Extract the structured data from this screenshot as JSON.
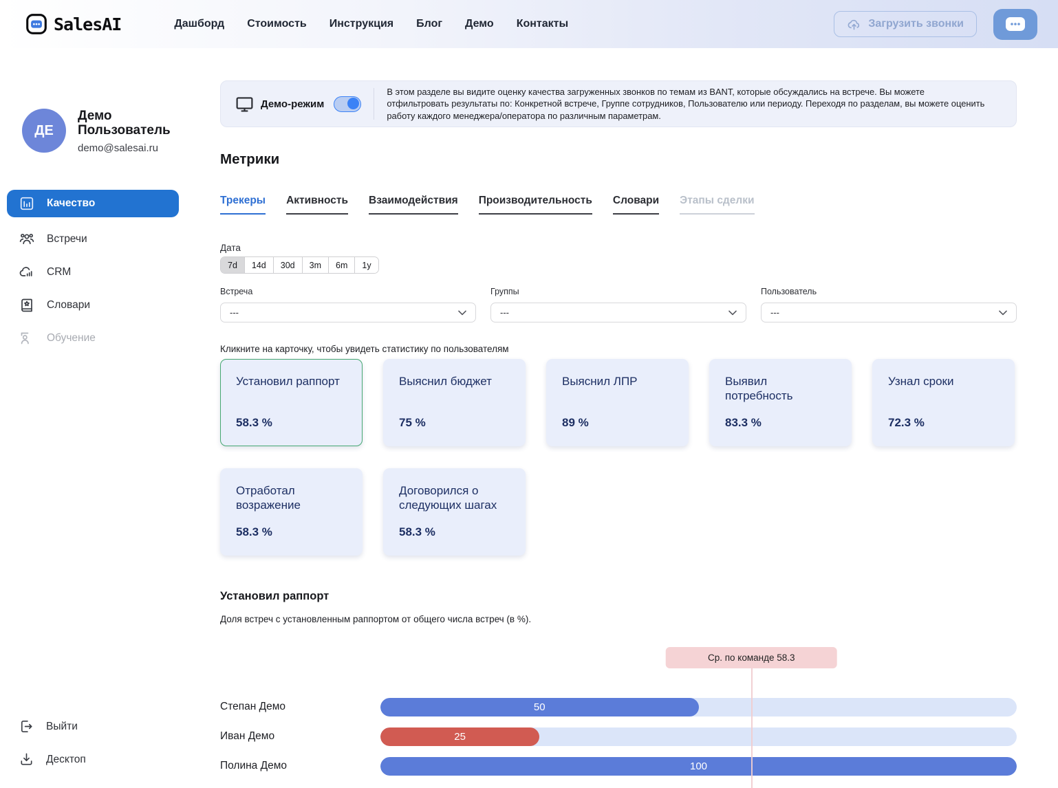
{
  "colors": {
    "accent_blue": "#2273d1",
    "toggle_blue": "#3b82f6",
    "bar_blue": "#5b7cd9",
    "bar_red": "#d15b52",
    "bar_track": "#dbe5f9",
    "card_bg": "#e9eefb",
    "card_selected_border": "#45a771",
    "avg_pill_bg": "#f5d3d5",
    "chat_button_bg": "#6f9ad9"
  },
  "header": {
    "logo_text": "SalesAI",
    "nav": [
      {
        "label": "Дашборд"
      },
      {
        "label": "Стоимость"
      },
      {
        "label": "Инструкция"
      },
      {
        "label": "Блог"
      },
      {
        "label": "Демо"
      },
      {
        "label": "Контакты"
      }
    ],
    "upload_button_label": "Загрузить звонки"
  },
  "sidebar": {
    "user": {
      "initials": "ДЕ",
      "name": "Демо Пользователь",
      "email": "demo@salesai.ru"
    },
    "items": [
      {
        "label": "Качество",
        "state": "active"
      },
      {
        "label": "Встречи",
        "state": "normal"
      },
      {
        "label": "CRM",
        "state": "normal"
      },
      {
        "label": "Словари",
        "state": "normal"
      },
      {
        "label": "Обучение",
        "state": "disabled"
      }
    ],
    "footer_items": [
      {
        "label": "Выйти"
      },
      {
        "label": "Десктоп"
      }
    ]
  },
  "banner": {
    "mode_label": "Демо-режим",
    "toggle_on": true,
    "description": "В этом разделе вы видите оценку качества загруженных звонков по темам из BANT, которые обсуждались на встрече. Вы можете отфильтровать результаты по: Конкретной встрече, Группе сотрудников, Пользователю или периоду. Переходя по разделам, вы можете оценить работу каждого менеджера/оператора по различным параметрам."
  },
  "metrics": {
    "title": "Метрики",
    "tabs": [
      {
        "label": "Трекеры",
        "state": "active"
      },
      {
        "label": "Активность",
        "state": "normal"
      },
      {
        "label": "Взаимодействия",
        "state": "normal"
      },
      {
        "label": "Производительность",
        "state": "normal"
      },
      {
        "label": "Словари",
        "state": "normal"
      },
      {
        "label": "Этапы сделки",
        "state": "disabled"
      }
    ],
    "date_filter": {
      "label": "Дата",
      "options": [
        "7d",
        "14d",
        "30d",
        "3m",
        "6m",
        "1y"
      ],
      "selected": "7d"
    },
    "filters": [
      {
        "label": "Встреча",
        "value": "---"
      },
      {
        "label": "Группы",
        "value": "---"
      },
      {
        "label": "Пользователь",
        "value": "---"
      }
    ],
    "cards_hint": "Кликните на карточку, чтобы увидеть статистику по пользователям",
    "cards": [
      {
        "title": "Установил раппорт",
        "value": "58.3 %",
        "selected": true
      },
      {
        "title": "Выяснил бюджет",
        "value": "75 %",
        "selected": false
      },
      {
        "title": "Выяснил ЛПР",
        "value": "89 %",
        "selected": false
      },
      {
        "title": "Выявил потребность",
        "value": "83.3 %",
        "selected": false
      },
      {
        "title": "Узнал сроки",
        "value": "72.3 %",
        "selected": false
      },
      {
        "title": "Отработал возражение",
        "value": "58.3 %",
        "selected": false
      },
      {
        "title": "Договорился о следующих шагах",
        "value": "58.3 %",
        "selected": false
      }
    ]
  },
  "chart_data": {
    "type": "bar",
    "orientation": "horizontal",
    "title": "Установил раппорт",
    "subtitle": "Доля встреч с установленным раппортом от общего числа встреч (в %).",
    "categories": [
      "Степан Демо",
      "Иван Демо",
      "Полина Демо"
    ],
    "values": [
      50,
      25,
      100
    ],
    "bar_colors": [
      "#5b7cd9",
      "#d15b52",
      "#5b7cd9"
    ],
    "xlim": [
      0,
      100
    ],
    "grid": false,
    "average_line": {
      "label": "Ср. по команде 58.3",
      "value": 58.3
    }
  }
}
